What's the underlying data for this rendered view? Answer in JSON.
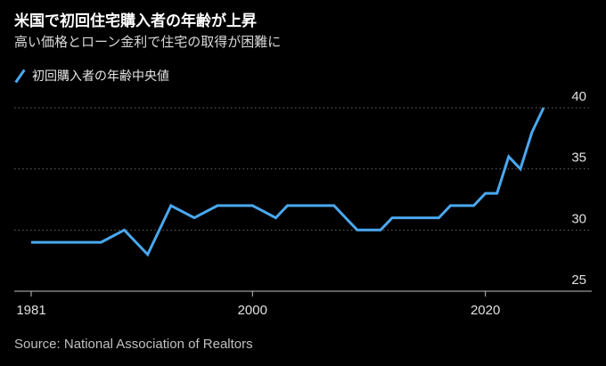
{
  "header": {
    "title": "米国で初回住宅購入者の年齢が上昇",
    "subtitle": "高い価格とローン金利で住宅の取得が困難に"
  },
  "footer": {
    "source": "Source: National Association of Realtors"
  },
  "colors": {
    "background": "#000000",
    "line": "#4aa8f0",
    "grid": "#666666",
    "text": "#ffffff"
  },
  "chart_data": {
    "type": "line",
    "title": "米国で初回住宅購入者の年齢が上昇",
    "subtitle": "高い価格とローン金利で住宅の取得が困難に",
    "xlabel": "",
    "ylabel": "",
    "xlim": [
      1981,
      2024
    ],
    "ylim": [
      25,
      40
    ],
    "x_ticks": [
      1981,
      2000,
      2020
    ],
    "y_ticks": [
      25,
      30,
      35,
      40
    ],
    "grid": "horizontal dotted",
    "legend_position": "top-left",
    "series": [
      {
        "name": "初回購入者の年齢中央値",
        "color": "#4aa8f0",
        "points": [
          [
            1981,
            29
          ],
          [
            1982,
            29
          ],
          [
            1983,
            29
          ],
          [
            1984,
            29
          ],
          [
            1985,
            29
          ],
          [
            1986,
            29
          ],
          [
            1987,
            29
          ],
          [
            1989,
            30
          ],
          [
            1991,
            28
          ],
          [
            1993,
            32
          ],
          [
            1995,
            31
          ],
          [
            1997,
            32
          ],
          [
            1998,
            32
          ],
          [
            1999,
            32
          ],
          [
            2000,
            32
          ],
          [
            2001,
            31.5
          ],
          [
            2002,
            31
          ],
          [
            2003,
            32
          ],
          [
            2004,
            32
          ],
          [
            2005,
            32
          ],
          [
            2006,
            32
          ],
          [
            2007,
            32
          ],
          [
            2008,
            31
          ],
          [
            2009,
            30
          ],
          [
            2010,
            30
          ],
          [
            2011,
            30
          ],
          [
            2012,
            31
          ],
          [
            2013,
            31
          ],
          [
            2014,
            31
          ],
          [
            2015,
            31
          ],
          [
            2016,
            31
          ],
          [
            2017,
            32
          ],
          [
            2018,
            32
          ],
          [
            2019,
            32
          ],
          [
            2020,
            33
          ],
          [
            2021,
            33
          ],
          [
            2022,
            36
          ],
          [
            2023,
            35
          ],
          [
            2024,
            38
          ],
          [
            2025,
            40
          ]
        ]
      }
    ]
  }
}
